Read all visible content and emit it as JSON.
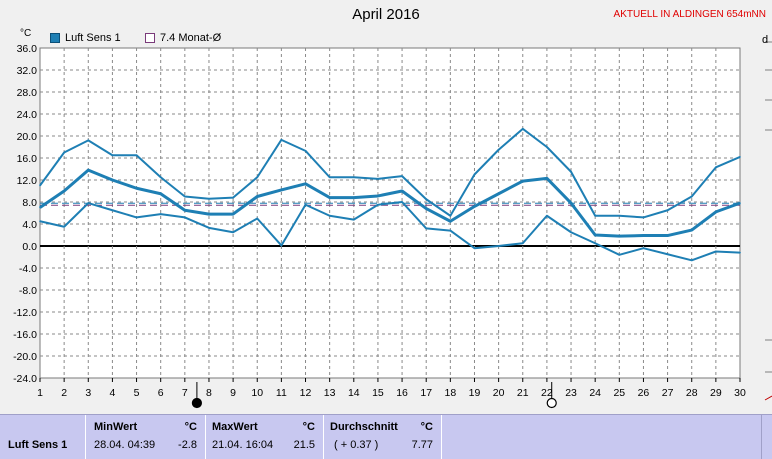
{
  "title": "April 2016",
  "station": "AKTUELL IN ALDINGEN 654mNN",
  "unit": "°C",
  "legend": [
    {
      "label": "Luft Sens 1",
      "color": "#1e7fb4"
    },
    {
      "label": "7.4 Monat-Ø",
      "color": "#7a3a7a"
    }
  ],
  "right_edge_char": "d",
  "stats": {
    "sensor_label": "Luft Sens 1",
    "min_header": "MinWert",
    "min_unit": "°C",
    "min_date": "28.04.  04:39",
    "min_value": "-2.8",
    "max_header": "MaxWert",
    "max_unit": "°C",
    "max_date": "21.04.  16:04",
    "max_value": "21.5",
    "avg_header": "Durchschnitt",
    "avg_unit": "°C",
    "avg_delta": "( + 0.37 )",
    "avg_value": "7.77"
  },
  "chart_data": {
    "type": "line",
    "title": "April 2016",
    "ylabel": "°C",
    "xlabel": "",
    "x": [
      1,
      2,
      3,
      4,
      5,
      6,
      7,
      8,
      9,
      10,
      11,
      12,
      13,
      14,
      15,
      16,
      17,
      18,
      19,
      20,
      21,
      22,
      23,
      24,
      25,
      26,
      27,
      28,
      29,
      30
    ],
    "ylim": [
      -24,
      36
    ],
    "yticks": [
      36.0,
      32.0,
      28.0,
      24.0,
      20.0,
      16.0,
      12.0,
      8.0,
      4.0,
      0.0,
      -4.0,
      -8.0,
      -12.0,
      -16.0,
      -20.0,
      -24.0
    ],
    "ytick_labels": [
      "36.0",
      "32.0",
      "28.0",
      "24.0",
      "20.0",
      "16.0",
      "12.0",
      "8.0",
      "4.0",
      "0.0",
      "-4.0",
      "-8.0",
      "-12.0",
      "-16.0",
      "-20.0",
      "-24.0"
    ],
    "grid": true,
    "series": [
      {
        "role": "max",
        "values": [
          11.0,
          17.0,
          19.2,
          16.5,
          16.5,
          12.5,
          9.0,
          8.6,
          8.8,
          12.5,
          19.3,
          17.3,
          12.5,
          12.5,
          12.2,
          12.7,
          8.5,
          5.5,
          13.0,
          17.5,
          21.3,
          18.0,
          13.5,
          5.5,
          5.5,
          5.2,
          6.5,
          9.0,
          14.3,
          16.2
        ]
      },
      {
        "role": "mean",
        "values": [
          7.0,
          10.0,
          13.8,
          12.0,
          10.5,
          9.5,
          6.5,
          5.8,
          5.8,
          9.0,
          10.2,
          11.3,
          8.8,
          8.8,
          9.1,
          10.0,
          6.8,
          4.5,
          7.2,
          9.5,
          11.8,
          12.3,
          7.8,
          2.0,
          1.8,
          1.9,
          1.9,
          2.9,
          6.2,
          7.8
        ]
      },
      {
        "role": "min",
        "values": [
          4.5,
          3.5,
          7.8,
          6.5,
          5.2,
          5.8,
          5.2,
          3.3,
          2.5,
          5.0,
          0.1,
          7.5,
          5.5,
          4.8,
          7.5,
          8.0,
          3.2,
          2.8,
          -0.4,
          0.0,
          0.5,
          5.5,
          2.5,
          0.5,
          -1.6,
          -0.4,
          -1.5,
          -2.6,
          -1.0,
          -1.2
        ]
      }
    ],
    "reference_lines": [
      {
        "label": "7.4 Monat-Ø",
        "value": 7.4,
        "style": "dashed"
      },
      {
        "value": 7.77,
        "style": "dashed"
      }
    ],
    "markers": [
      {
        "x": 7.5,
        "type": "new-moon"
      },
      {
        "x": 22.2,
        "type": "full-moon"
      }
    ]
  }
}
